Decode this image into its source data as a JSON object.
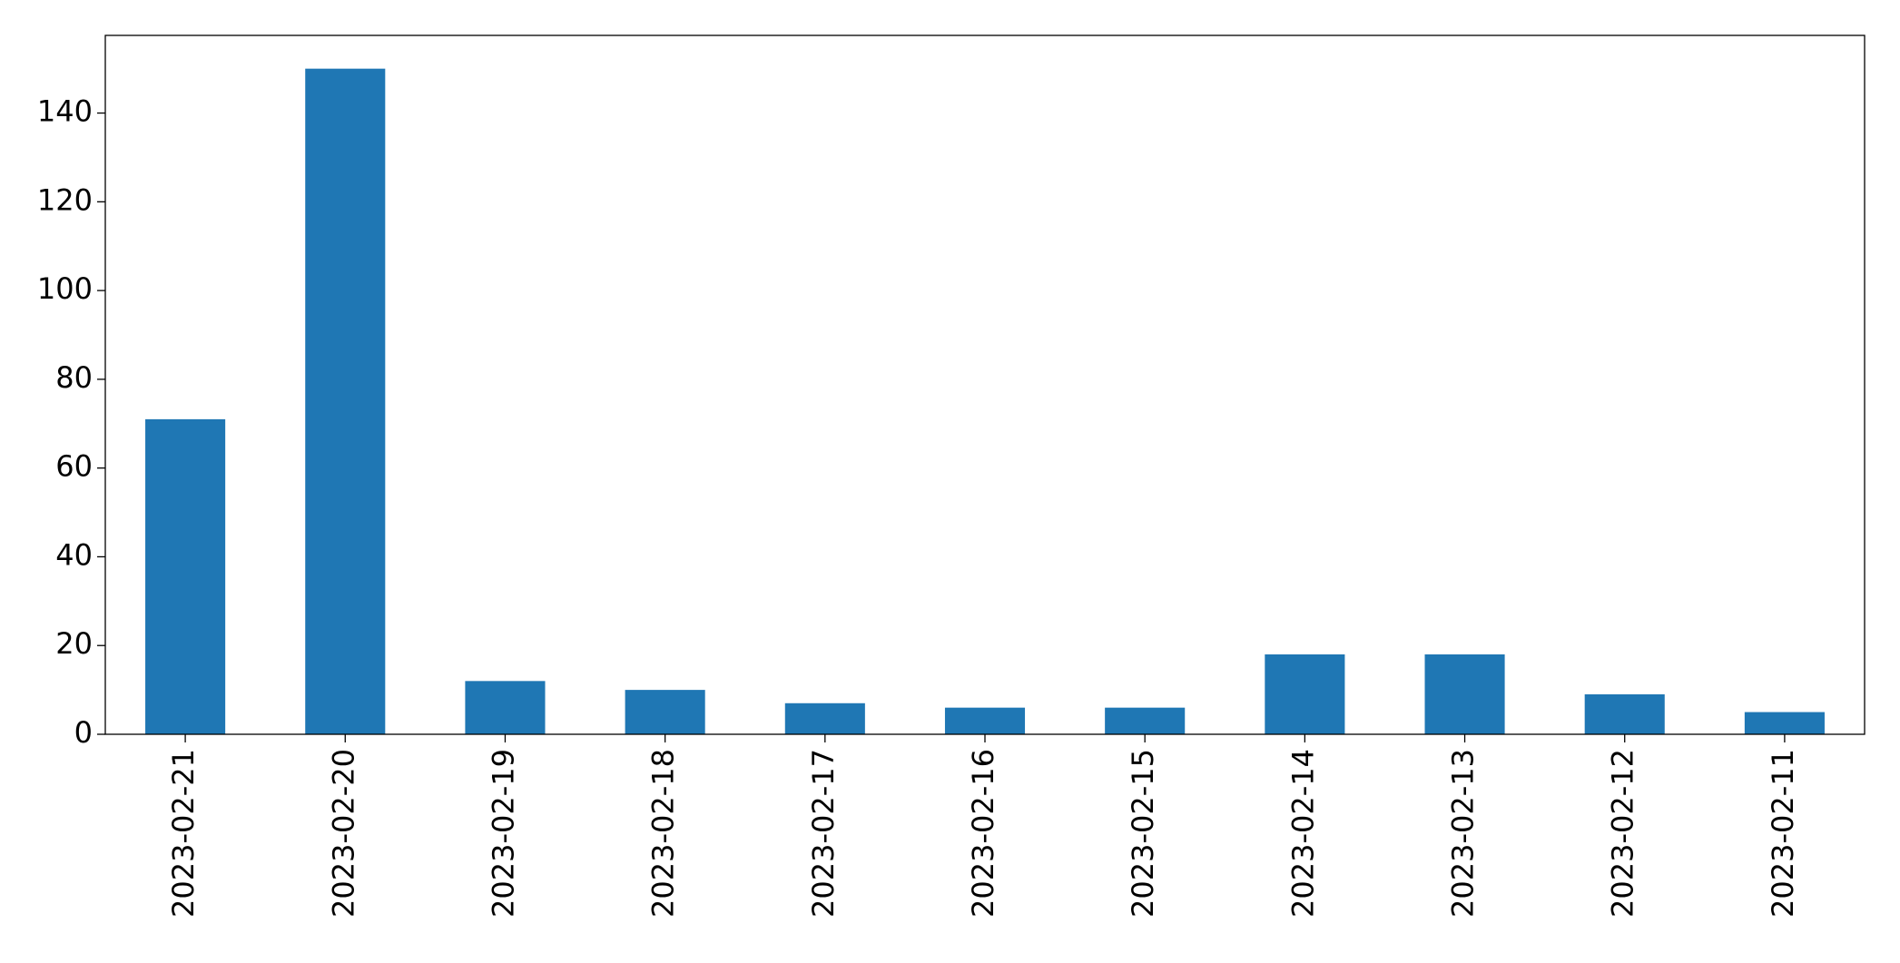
{
  "chart_data": {
    "type": "bar",
    "categories": [
      "2023-02-21",
      "2023-02-20",
      "2023-02-19",
      "2023-02-18",
      "2023-02-17",
      "2023-02-16",
      "2023-02-15",
      "2023-02-14",
      "2023-02-13",
      "2023-02-12",
      "2023-02-11"
    ],
    "values": [
      71,
      150,
      12,
      10,
      7,
      6,
      6,
      18,
      18,
      9,
      5
    ],
    "color": "#1f77b4",
    "ylim": [
      0,
      157.5
    ],
    "yticks": [
      0,
      20,
      40,
      60,
      80,
      100,
      120,
      140
    ],
    "grid": false
  }
}
